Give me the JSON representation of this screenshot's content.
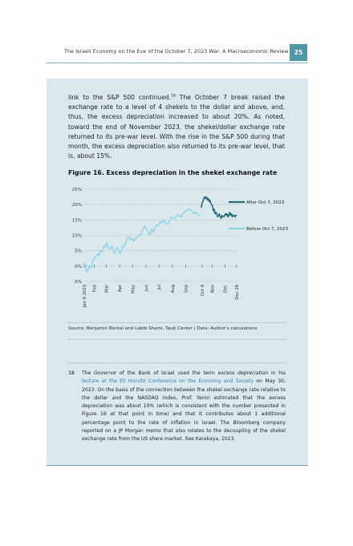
{
  "header": {
    "title": "The Israeli Economy on the Eve of the October 7, 2023 War: A Macroeconomic Review",
    "page_number": "25"
  },
  "body": {
    "p1": "link to the S&P 500 continued.",
    "p1_sup": "18",
    "p2": " The October 7 break raised the exchange rate to a level of 4 shekels to the dollar and above, and, thus, the excess depreciation increased to about 20%. As noted, toward the end of November 2023, the shekel/dollar exchange rate returned to its pre-war level. With the rise in the S&P 500 during that month, the excess depreciation also returned to its pre-war level, that is, about 15%."
  },
  "figure": {
    "title": "Figure 16. Excess depreciation in the shekel exchange rate",
    "source": "Source: Benjamin Bental and Labib Shami, Taub Center | Data: Author's calculations"
  },
  "chart_data": {
    "type": "line",
    "title": "Figure 16. Excess depreciation in the shekel exchange rate",
    "xlabel": "",
    "ylabel": "",
    "ylim": [
      -5,
      25
    ],
    "y_ticks": [
      "25%",
      "20%",
      "15%",
      "10%",
      "5%",
      "0%",
      "-5%"
    ],
    "x_tick_labels": [
      "Jan 9 2023",
      "Feb",
      "Mar",
      "Apr",
      "May",
      "Jun",
      "Jul",
      "Aug",
      "Sep",
      "Oct 9",
      "Nov",
      "Dec",
      "Dec 28"
    ],
    "x_tick_days": [
      0,
      23,
      51,
      82,
      112,
      143,
      173,
      204,
      235,
      273,
      296,
      326,
      353
    ],
    "grid": true,
    "legend_position": "right",
    "series": [
      {
        "name": "Before Oct 7, 2023",
        "color": "#8fd3e3",
        "x": [
          0,
          3,
          6,
          9,
          12,
          16,
          20,
          24,
          28,
          32,
          35,
          38,
          42,
          45,
          49,
          52,
          56,
          60,
          64,
          68,
          71,
          75,
          79,
          83,
          87,
          91,
          95,
          99,
          103,
          107,
          111,
          115,
          119,
          124,
          128,
          132,
          136,
          140,
          144,
          148,
          152,
          156,
          160,
          164,
          168,
          172,
          176,
          180,
          184,
          188,
          192,
          196,
          200,
          204,
          208,
          212,
          216,
          220,
          224,
          228,
          232,
          236,
          240,
          244,
          248,
          252,
          256,
          260,
          264,
          268
        ],
        "y": [
          1.0,
          0.5,
          -2.0,
          -1.2,
          0.0,
          -0.5,
          1.5,
          3.0,
          3.0,
          4.0,
          3.5,
          5.0,
          4.5,
          6.5,
          6.0,
          7.5,
          6.0,
          5.5,
          6.5,
          5.0,
          4.0,
          6.0,
          5.5,
          4.0,
          5.5,
          6.5,
          7.0,
          9.0,
          9.5,
          8.5,
          9.0,
          8.0,
          9.0,
          9.5,
          10.0,
          10.5,
          12.0,
          13.0,
          12.0,
          11.0,
          10.0,
          12.0,
          11.0,
          12.5,
          13.5,
          13.0,
          14.5,
          14.0,
          15.0,
          14.0,
          13.5,
          14.0,
          16.0,
          15.5,
          15.5,
          16.0,
          16.5,
          16.5,
          16.0,
          17.0,
          17.5,
          18.0,
          18.5,
          18.5,
          18.0,
          17.5,
          17.0,
          17.5,
          16.5,
          16.5
        ]
      },
      {
        "name": "After Oct 7, 2023",
        "color": "#2d6b74",
        "x": [
          271,
          273,
          275,
          277,
          279,
          281,
          283,
          285,
          287,
          289,
          291,
          293,
          295,
          297,
          299,
          301,
          303,
          305,
          307,
          309,
          311,
          313,
          315,
          317,
          319,
          321,
          323,
          325,
          327,
          329,
          331,
          333,
          335,
          337,
          339,
          341,
          343,
          345,
          347,
          349,
          351,
          353
        ],
        "y": [
          19.0,
          20.5,
          21.0,
          22.0,
          22.5,
          22.0,
          22.5,
          21.5,
          22.0,
          21.0,
          21.5,
          20.5,
          20.0,
          19.5,
          18.0,
          18.5,
          17.0,
          17.5,
          17.0,
          16.0,
          16.5,
          17.0,
          16.0,
          15.5,
          16.5,
          16.0,
          16.0,
          16.5,
          17.0,
          16.5,
          17.0,
          16.0,
          16.5,
          17.5,
          16.5,
          17.0,
          16.0,
          16.5,
          16.5,
          16.0,
          16.5,
          16.5
        ]
      }
    ]
  },
  "footnote": {
    "number": "18",
    "t1": "The Governor of the Bank of Israel used the term ",
    "t1_em": "excess depreciation",
    "t1_b": " in his ",
    "link": "lecture at the Eli Hurvitz Conference on the Economy and Society",
    "t2": " on May 30, 2023. On the basis of the connection between the shekel exchange rate relative to the dollar and the NASDAQ index, Prof. Yaron estimated that the excess depreciation was about 10% (which is consistent with the number presented in Figure 16 at that point in time) and that it contributes about 1 additional percentage point to the rate of inflation in Israel. The Bloomberg company reported on a JP Morgan memo that also relates to the decoupling of the shekel exchange rate from the US share market. See Karakaya, 2023."
  }
}
